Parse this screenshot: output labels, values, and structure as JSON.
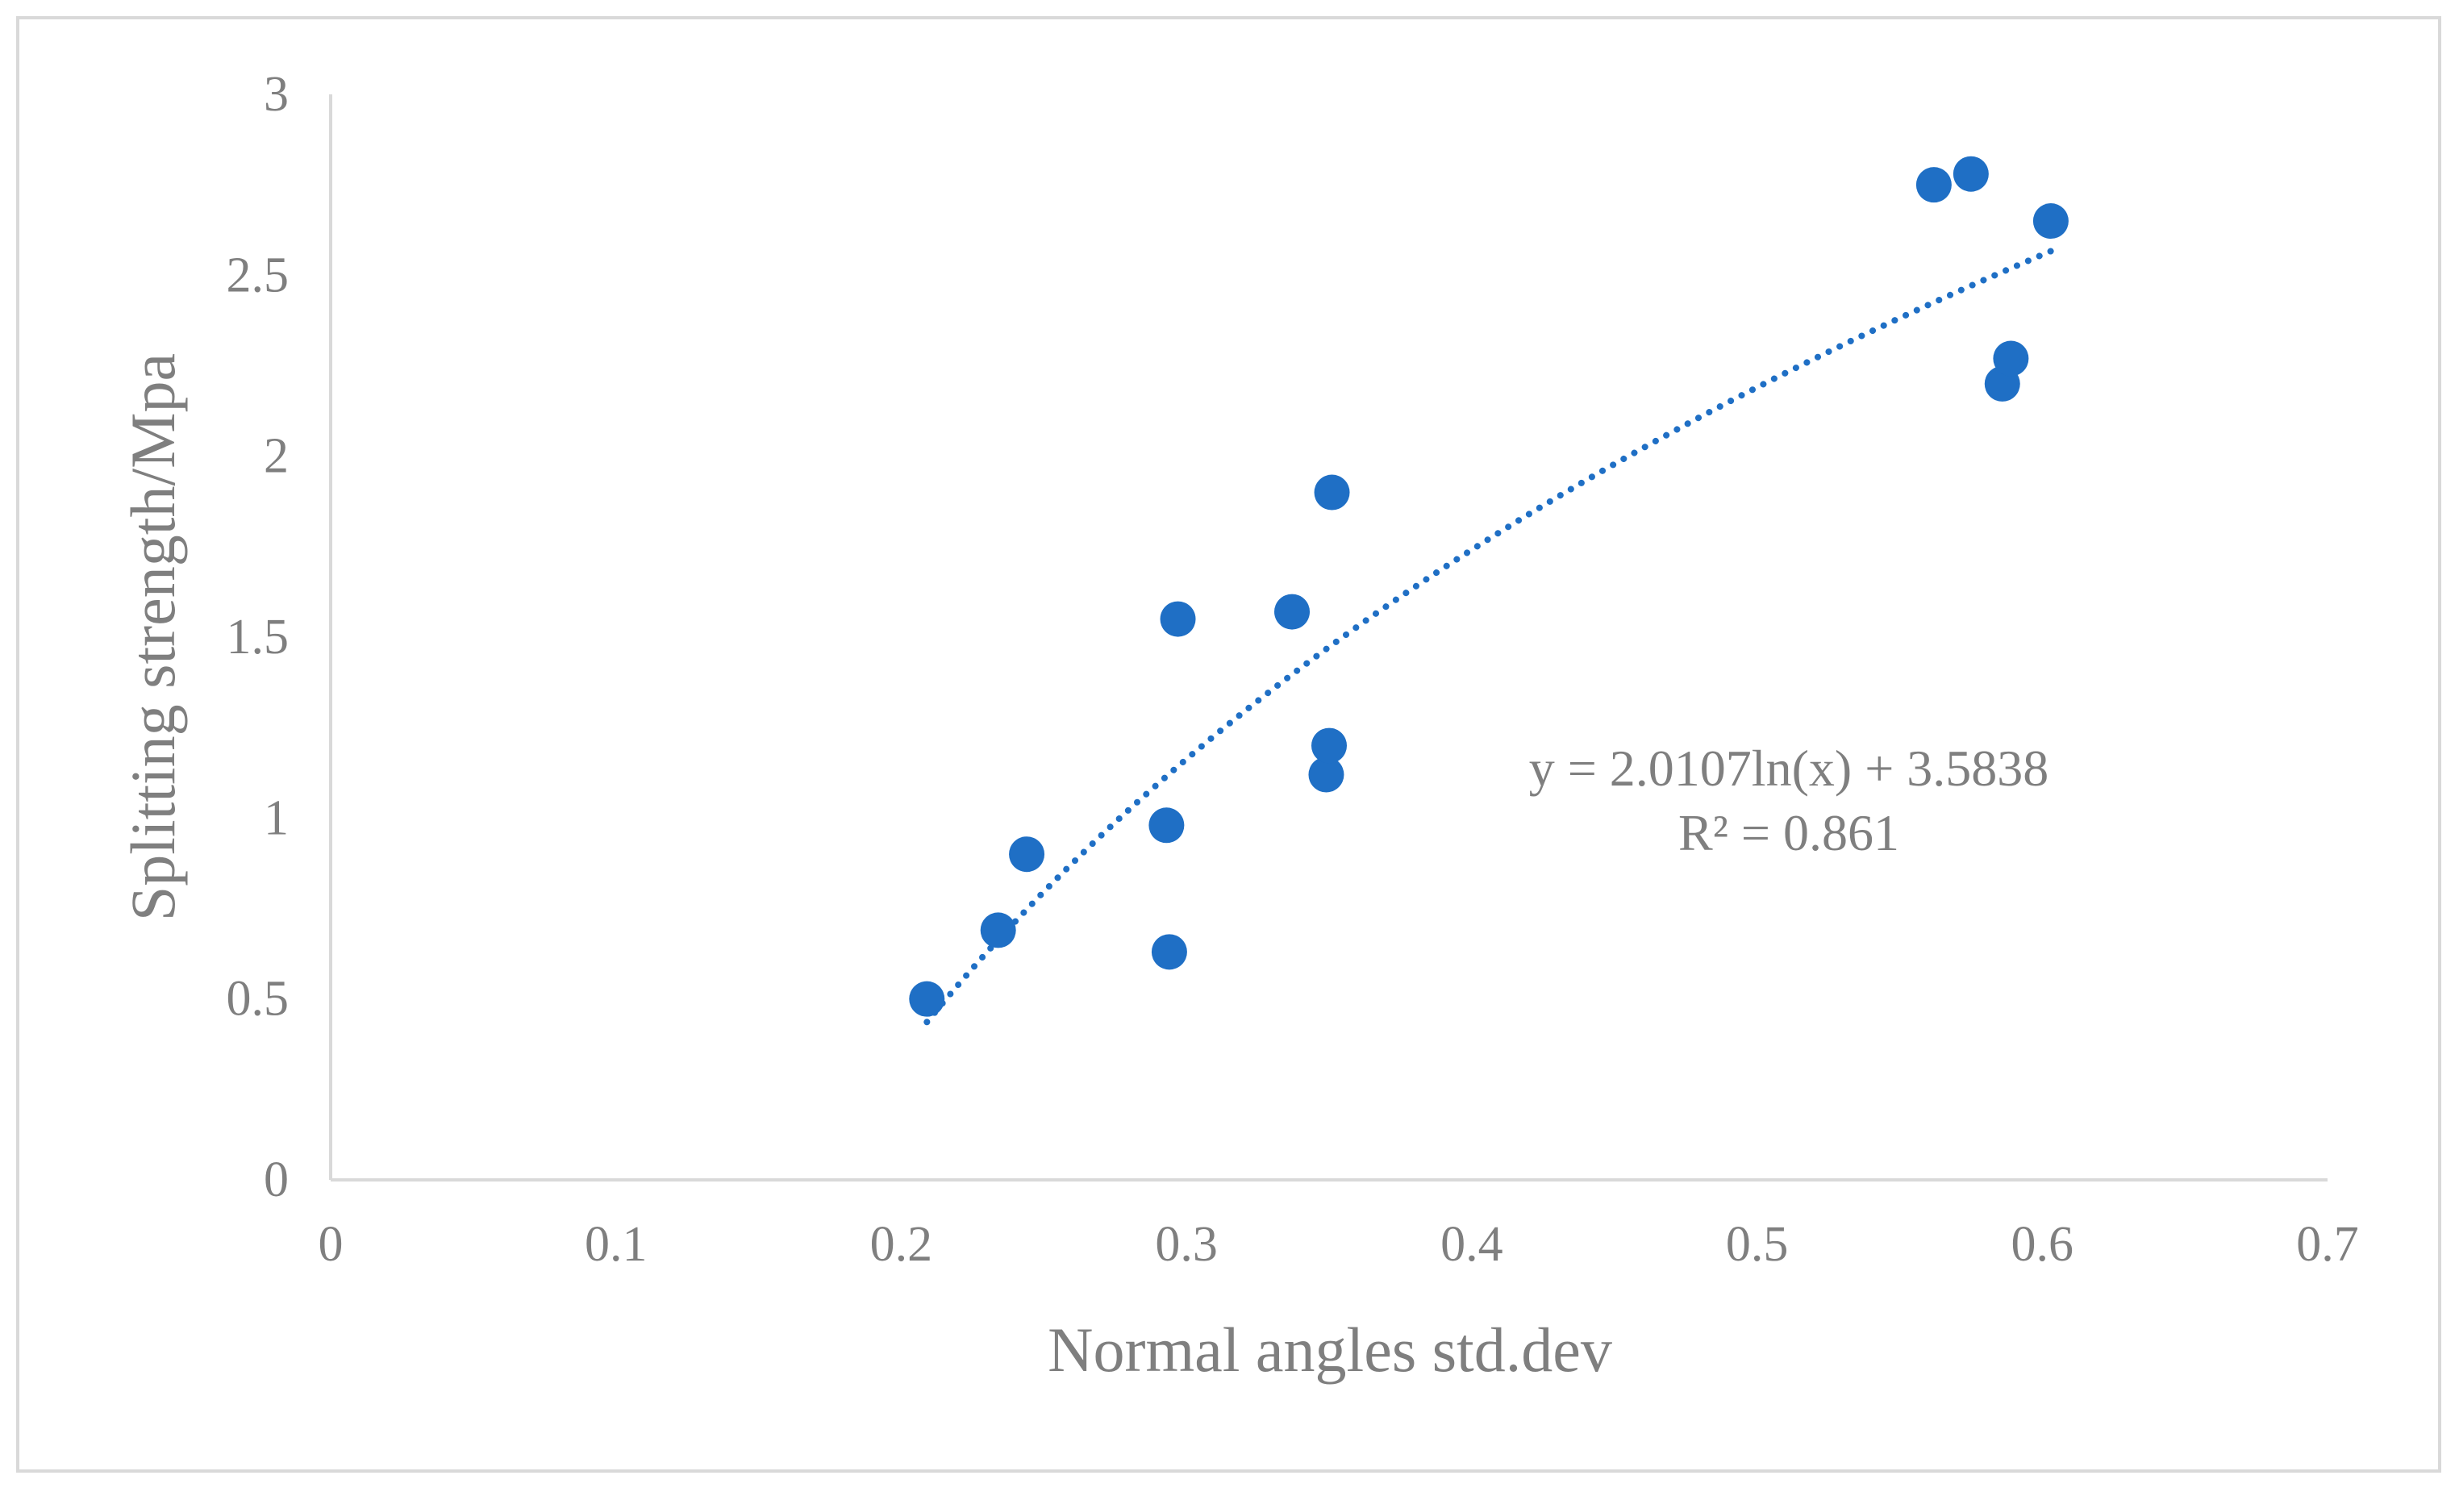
{
  "chart_data": {
    "type": "scatter",
    "title": "",
    "xlabel": "Normal angles std.dev",
    "ylabel": "Splitting strength/Mpa",
    "xlim": [
      0,
      0.7
    ],
    "ylim": [
      0,
      3
    ],
    "x_ticks": [
      "0",
      "0.1",
      "0.2",
      "0.3",
      "0.4",
      "0.5",
      "0.6",
      "0.7"
    ],
    "y_ticks": [
      "0",
      "0.5",
      "1",
      "1.5",
      "2",
      "2.5",
      "3"
    ],
    "x_tick_values": [
      0,
      0.1,
      0.2,
      0.3,
      0.4,
      0.5,
      0.6,
      0.7
    ],
    "y_tick_values": [
      0,
      0.5,
      1,
      1.5,
      2,
      2.5,
      3
    ],
    "grid": false,
    "legend": "none",
    "series": [
      {
        "name": "Splitting strength",
        "color": "#1f6fc5",
        "points": [
          {
            "x": 0.209,
            "y": 0.5
          },
          {
            "x": 0.234,
            "y": 0.69
          },
          {
            "x": 0.244,
            "y": 0.9
          },
          {
            "x": 0.293,
            "y": 0.98
          },
          {
            "x": 0.294,
            "y": 0.63
          },
          {
            "x": 0.297,
            "y": 1.55
          },
          {
            "x": 0.337,
            "y": 1.57
          },
          {
            "x": 0.349,
            "y": 1.12
          },
          {
            "x": 0.35,
            "y": 1.2
          },
          {
            "x": 0.351,
            "y": 1.9
          },
          {
            "x": 0.562,
            "y": 2.75
          },
          {
            "x": 0.575,
            "y": 2.78
          },
          {
            "x": 0.586,
            "y": 2.2
          },
          {
            "x": 0.589,
            "y": 2.27
          },
          {
            "x": 0.603,
            "y": 2.65
          }
        ]
      }
    ],
    "trendline": {
      "type": "logarithmic",
      "a": 2.0107,
      "b": 3.5838,
      "x_range": [
        0.209,
        0.603
      ],
      "color": "#1f6fc5",
      "style": "dotted",
      "equation_label": "y = 2.0107ln(x) + 3.5838",
      "r2_label": "R² = 0.861"
    },
    "axis_color": "#d9d9d9",
    "text_color": "#7f7f7f"
  }
}
